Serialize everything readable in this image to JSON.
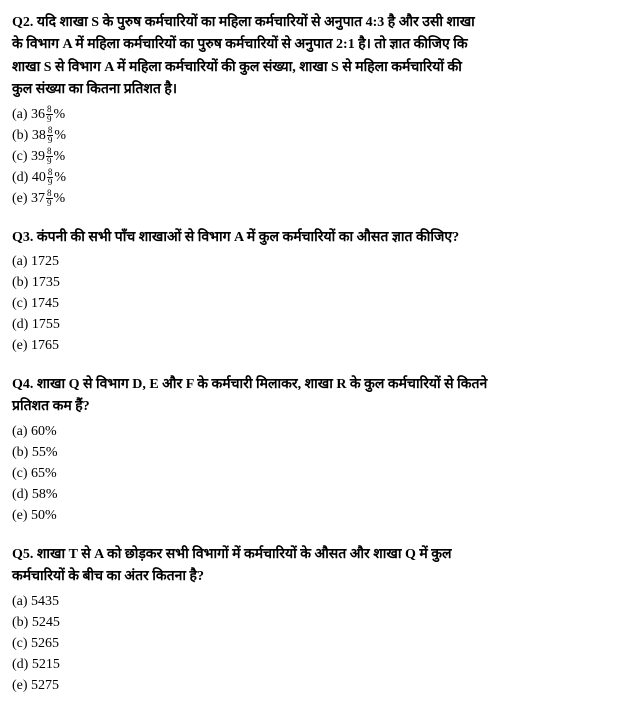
{
  "questions": [
    {
      "number": "Q2.",
      "lines": [
        "यदि शाखा S के पुरुष कर्मचारियों का महिला कर्मचारियों से अनुपात 4:3 है और उसी शाखा",
        "के विभाग A में महिला कर्मचारियों का पुरुष कर्मचारियों से अनुपात 2:1 है। तो ज्ञात कीजिए कि",
        "शाखा S से विभाग A में महिला कर्मचारियों की कुल संख्या, शाखा S से महिला कर्मचारियों की",
        "कुल संख्या का कितना प्रतिशत है।"
      ],
      "fraction_options": [
        {
          "label": "(a)",
          "whole": "36",
          "num": "8",
          "den": "9",
          "suffix": "%"
        },
        {
          "label": "(b)",
          "whole": "38",
          "num": "8",
          "den": "9",
          "suffix": "%"
        },
        {
          "label": "(c)",
          "whole": "39",
          "num": "8",
          "den": "9",
          "suffix": "%"
        },
        {
          "label": "(d)",
          "whole": "40",
          "num": "8",
          "den": "9",
          "suffix": "%"
        },
        {
          "label": "(e)",
          "whole": "37",
          "num": "8",
          "den": "9",
          "suffix": "%"
        }
      ]
    },
    {
      "number": "Q3.",
      "lines": [
        "कंपनी की सभी पाँच शाखाओं से विभाग A में कुल कर्मचारियों का औसत ज्ञात कीजिए?"
      ],
      "options": [
        "(a) 1725",
        "(b) 1735",
        "(c) 1745",
        "(d) 1755",
        "(e) 1765"
      ]
    },
    {
      "number": "Q4.",
      "lines": [
        "शाखा Q से विभाग D, E और F के कर्मचारी मिलाकर, शाखा R के कुल कर्मचारियों से कितने",
        "प्रतिशत कम हैं?"
      ],
      "options": [
        "(a) 60%",
        "(b) 55%",
        "(c) 65%",
        "(d) 58%",
        "(e) 50%"
      ]
    },
    {
      "number": "Q5.",
      "lines": [
        "शाखा T से A को छोड़कर सभी विभागों में कर्मचारियों के औसत और शाखा Q में कुल",
        "कर्मचारियों के बीच का अंतर कितना है?"
      ],
      "options": [
        "(a) 5435",
        "(b) 5245",
        "(c) 5265",
        "(d) 5215",
        "(e) 5275"
      ]
    }
  ]
}
